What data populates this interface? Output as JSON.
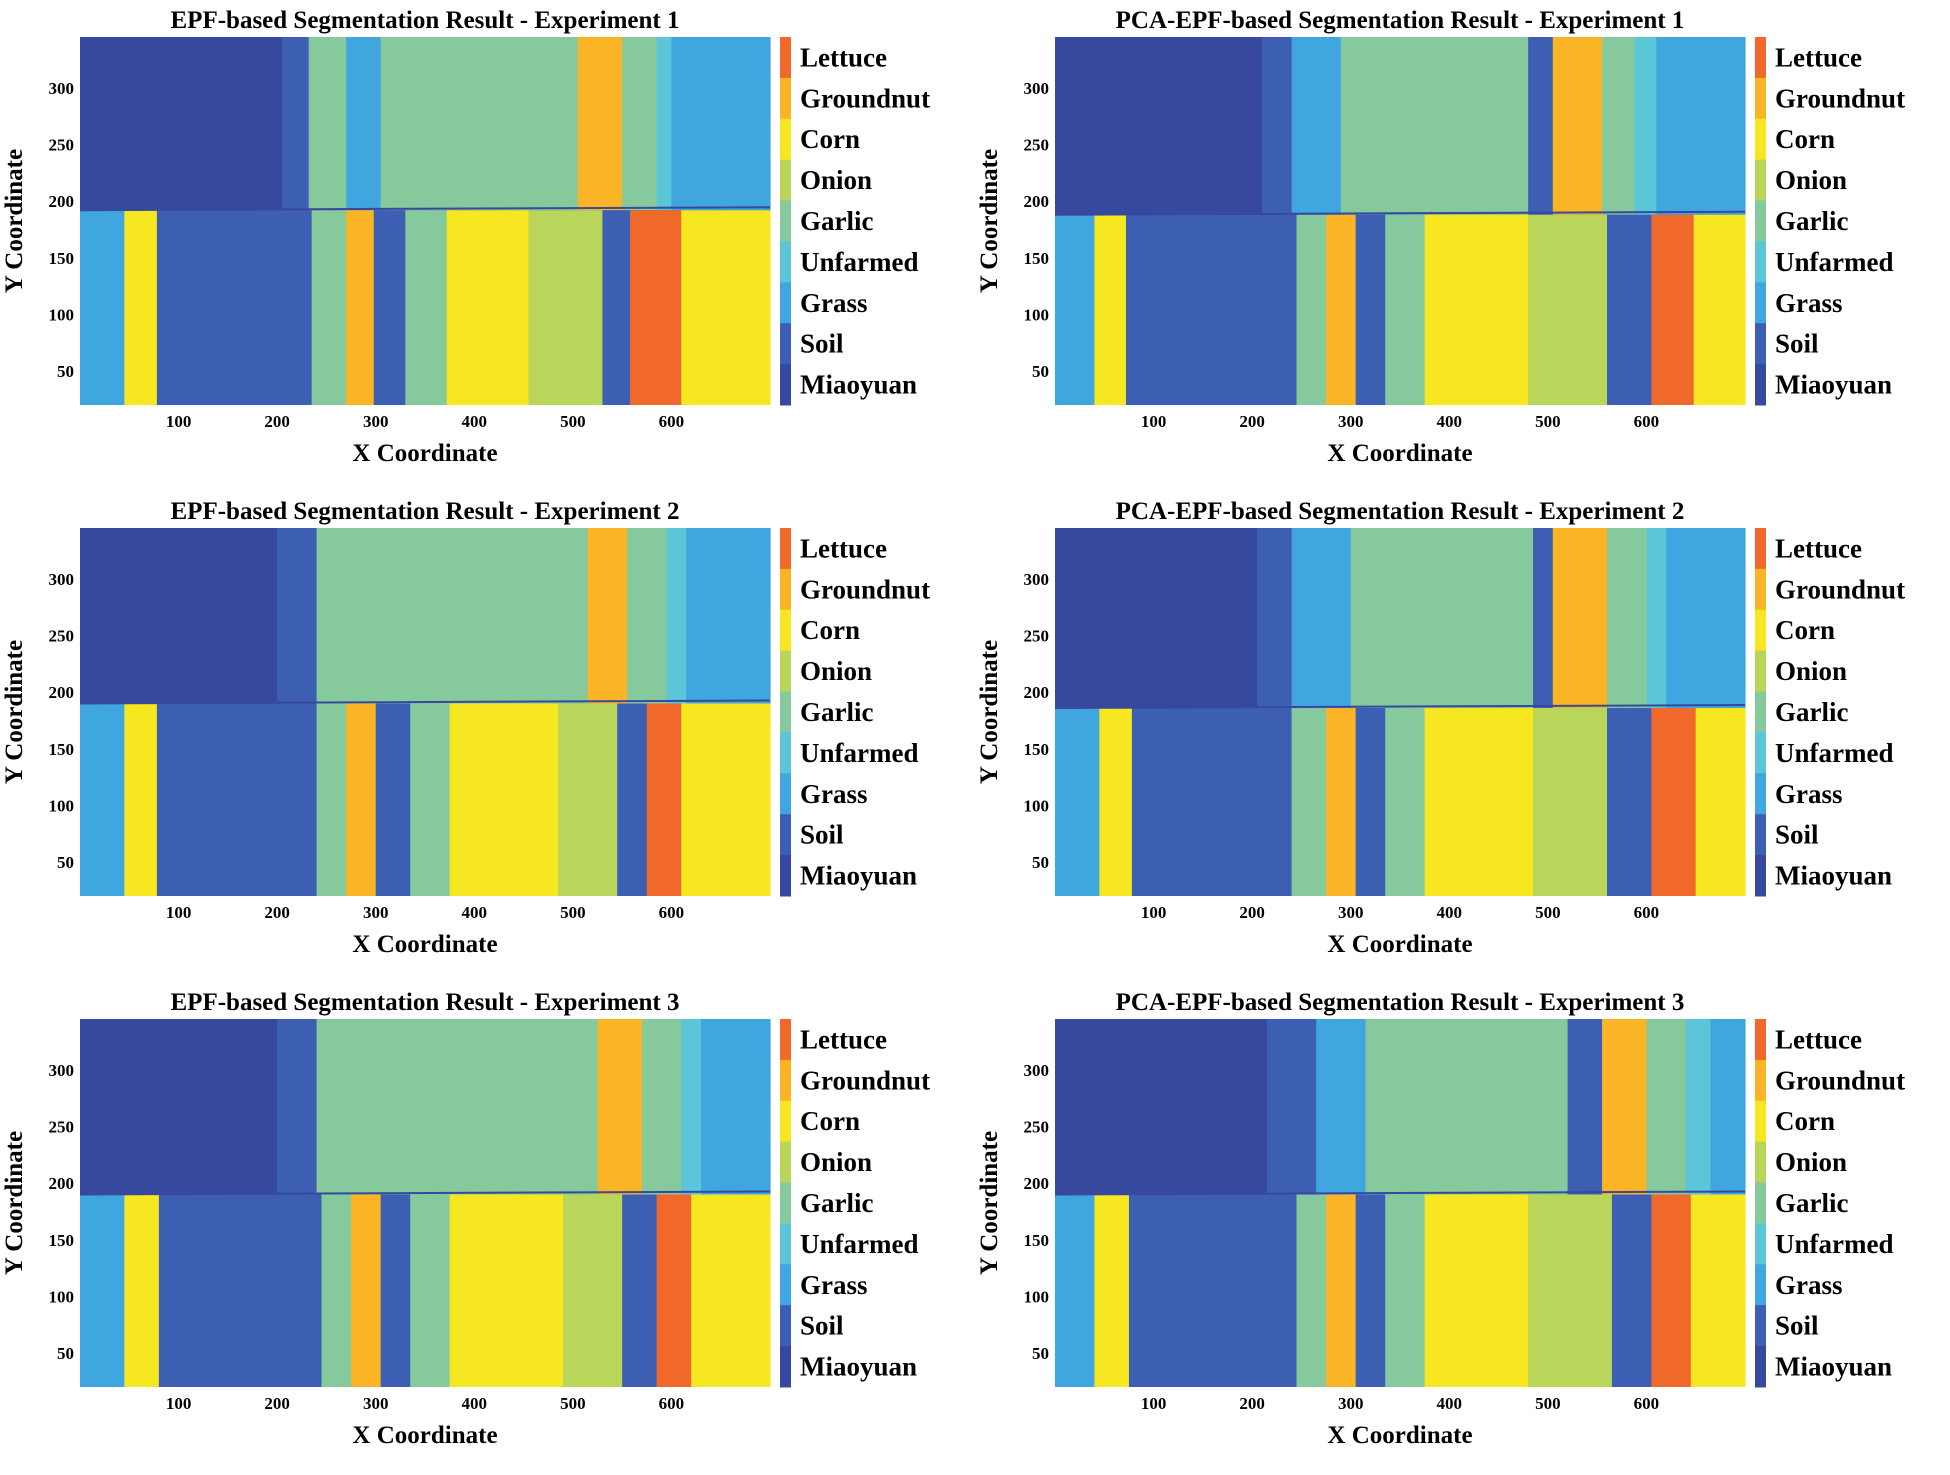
{
  "figure": {
    "panel_count": 6
  },
  "classes": [
    "Lettuce",
    "Groundnut",
    "Corn",
    "Onion",
    "Garlic",
    "Unfarmed",
    "Grass",
    "Soil",
    "Miaoyuan"
  ],
  "class_colors": {
    "Lettuce": "#f0692a",
    "Groundnut": "#fbb425",
    "Corn": "#f6e720",
    "Onion": "#b9d65a",
    "Garlic": "#85c99c",
    "Unfarmed": "#5cc6d9",
    "Grass": "#3fa6e0",
    "Soil": "#3d5fb3",
    "Miaoyuan": "#37489f"
  },
  "chart_data": [
    {
      "type": "heatmap",
      "title": "EPF-based Segmentation Result - Experiment 1",
      "xlabel": "X Coordinate",
      "ylabel": "Y Coordinate",
      "xlim": [
        0,
        700
      ],
      "ylim": [
        20,
        345
      ],
      "xticks": [
        100,
        200,
        300,
        400,
        500,
        600
      ],
      "yticks": [
        50,
        100,
        150,
        200,
        250,
        300
      ],
      "legend": [
        "Lettuce",
        "Groundnut",
        "Corn",
        "Onion",
        "Garlic",
        "Unfarmed",
        "Grass",
        "Soil",
        "Miaoyuan"
      ],
      "legend_position": "right",
      "boundary_y": 192,
      "top_regions": [
        {
          "x": [
            0,
            205
          ],
          "cls": "Miaoyuan"
        },
        {
          "x": [
            205,
            232
          ],
          "cls": "Soil"
        },
        {
          "x": [
            232,
            270
          ],
          "cls": "Garlic"
        },
        {
          "x": [
            270,
            305
          ],
          "cls": "Grass"
        },
        {
          "x": [
            305,
            375
          ],
          "cls": "Garlic"
        },
        {
          "x": [
            375,
            505
          ],
          "cls": "Garlic"
        },
        {
          "x": [
            505,
            550
          ],
          "cls": "Groundnut"
        },
        {
          "x": [
            550,
            585
          ],
          "cls": "Garlic"
        },
        {
          "x": [
            585,
            600
          ],
          "cls": "Unfarmed"
        },
        {
          "x": [
            600,
            700
          ],
          "cls": "Grass"
        }
      ],
      "bottom_regions": [
        {
          "x": [
            0,
            45
          ],
          "cls": "Grass"
        },
        {
          "x": [
            45,
            78
          ],
          "cls": "Corn"
        },
        {
          "x": [
            78,
            235
          ],
          "cls": "Soil"
        },
        {
          "x": [
            235,
            270
          ],
          "cls": "Garlic"
        },
        {
          "x": [
            270,
            298
          ],
          "cls": "Groundnut"
        },
        {
          "x": [
            298,
            330
          ],
          "cls": "Soil"
        },
        {
          "x": [
            330,
            372
          ],
          "cls": "Garlic"
        },
        {
          "x": [
            372,
            455
          ],
          "cls": "Corn"
        },
        {
          "x": [
            455,
            530
          ],
          "cls": "Onion"
        },
        {
          "x": [
            530,
            558
          ],
          "cls": "Soil"
        },
        {
          "x": [
            558,
            610
          ],
          "cls": "Lettuce"
        },
        {
          "x": [
            610,
            700
          ],
          "cls": "Corn"
        }
      ]
    },
    {
      "type": "heatmap",
      "title": "PCA-EPF-based Segmentation Result - Experiment 1",
      "xlabel": "X Coordinate",
      "ylabel": "Y Coordinate",
      "xlim": [
        0,
        700
      ],
      "ylim": [
        20,
        345
      ],
      "xticks": [
        100,
        200,
        300,
        400,
        500,
        600
      ],
      "yticks": [
        50,
        100,
        150,
        200,
        250,
        300
      ],
      "legend": [
        "Lettuce",
        "Groundnut",
        "Corn",
        "Onion",
        "Garlic",
        "Unfarmed",
        "Grass",
        "Soil",
        "Miaoyuan"
      ],
      "legend_position": "right",
      "boundary_y": 188,
      "top_regions": [
        {
          "x": [
            0,
            210
          ],
          "cls": "Miaoyuan"
        },
        {
          "x": [
            210,
            240
          ],
          "cls": "Soil"
        },
        {
          "x": [
            240,
            290
          ],
          "cls": "Grass"
        },
        {
          "x": [
            290,
            375
          ],
          "cls": "Garlic"
        },
        {
          "x": [
            375,
            480
          ],
          "cls": "Garlic"
        },
        {
          "x": [
            480,
            505
          ],
          "cls": "Soil"
        },
        {
          "x": [
            505,
            555
          ],
          "cls": "Groundnut"
        },
        {
          "x": [
            555,
            588
          ],
          "cls": "Garlic"
        },
        {
          "x": [
            588,
            610
          ],
          "cls": "Unfarmed"
        },
        {
          "x": [
            610,
            700
          ],
          "cls": "Grass"
        }
      ],
      "bottom_regions": [
        {
          "x": [
            0,
            40
          ],
          "cls": "Grass"
        },
        {
          "x": [
            40,
            72
          ],
          "cls": "Corn"
        },
        {
          "x": [
            72,
            245
          ],
          "cls": "Soil"
        },
        {
          "x": [
            245,
            275
          ],
          "cls": "Garlic"
        },
        {
          "x": [
            275,
            305
          ],
          "cls": "Groundnut"
        },
        {
          "x": [
            305,
            335
          ],
          "cls": "Soil"
        },
        {
          "x": [
            335,
            375
          ],
          "cls": "Garlic"
        },
        {
          "x": [
            375,
            480
          ],
          "cls": "Corn"
        },
        {
          "x": [
            480,
            560
          ],
          "cls": "Onion"
        },
        {
          "x": [
            560,
            605
          ],
          "cls": "Soil"
        },
        {
          "x": [
            605,
            648
          ],
          "cls": "Lettuce"
        },
        {
          "x": [
            648,
            700
          ],
          "cls": "Corn"
        }
      ]
    },
    {
      "type": "heatmap",
      "title": "EPF-based Segmentation Result - Experiment 2",
      "xlabel": "X Coordinate",
      "ylabel": "Y Coordinate",
      "xlim": [
        0,
        700
      ],
      "ylim": [
        20,
        345
      ],
      "xticks": [
        100,
        200,
        300,
        400,
        500,
        600
      ],
      "yticks": [
        50,
        100,
        150,
        200,
        250,
        300
      ],
      "legend": [
        "Lettuce",
        "Groundnut",
        "Corn",
        "Onion",
        "Garlic",
        "Unfarmed",
        "Grass",
        "Soil",
        "Miaoyuan"
      ],
      "legend_position": "right",
      "boundary_y": 190,
      "top_regions": [
        {
          "x": [
            0,
            200
          ],
          "cls": "Miaoyuan"
        },
        {
          "x": [
            200,
            240
          ],
          "cls": "Soil"
        },
        {
          "x": [
            240,
            300
          ],
          "cls": "Garlic"
        },
        {
          "x": [
            300,
            380
          ],
          "cls": "Garlic"
        },
        {
          "x": [
            380,
            515
          ],
          "cls": "Garlic"
        },
        {
          "x": [
            515,
            555
          ],
          "cls": "Groundnut"
        },
        {
          "x": [
            555,
            595
          ],
          "cls": "Garlic"
        },
        {
          "x": [
            595,
            615
          ],
          "cls": "Unfarmed"
        },
        {
          "x": [
            615,
            700
          ],
          "cls": "Grass"
        }
      ],
      "bottom_regions": [
        {
          "x": [
            0,
            45
          ],
          "cls": "Grass"
        },
        {
          "x": [
            45,
            78
          ],
          "cls": "Corn"
        },
        {
          "x": [
            78,
            240
          ],
          "cls": "Soil"
        },
        {
          "x": [
            240,
            270
          ],
          "cls": "Garlic"
        },
        {
          "x": [
            270,
            300
          ],
          "cls": "Groundnut"
        },
        {
          "x": [
            300,
            335
          ],
          "cls": "Soil"
        },
        {
          "x": [
            335,
            375
          ],
          "cls": "Garlic"
        },
        {
          "x": [
            375,
            485
          ],
          "cls": "Corn"
        },
        {
          "x": [
            485,
            545
          ],
          "cls": "Onion"
        },
        {
          "x": [
            545,
            575
          ],
          "cls": "Soil"
        },
        {
          "x": [
            575,
            610
          ],
          "cls": "Lettuce"
        },
        {
          "x": [
            610,
            700
          ],
          "cls": "Corn"
        }
      ]
    },
    {
      "type": "heatmap",
      "title": "PCA-EPF-based Segmentation Result - Experiment 2",
      "xlabel": "X Coordinate",
      "ylabel": "Y Coordinate",
      "xlim": [
        0,
        700
      ],
      "ylim": [
        20,
        345
      ],
      "xticks": [
        100,
        200,
        300,
        400,
        500,
        600
      ],
      "yticks": [
        50,
        100,
        150,
        200,
        250,
        300
      ],
      "legend": [
        "Lettuce",
        "Groundnut",
        "Corn",
        "Onion",
        "Garlic",
        "Unfarmed",
        "Grass",
        "Soil",
        "Miaoyuan"
      ],
      "legend_position": "right",
      "boundary_y": 186,
      "top_regions": [
        {
          "x": [
            0,
            205
          ],
          "cls": "Miaoyuan"
        },
        {
          "x": [
            205,
            240
          ],
          "cls": "Soil"
        },
        {
          "x": [
            240,
            300
          ],
          "cls": "Grass"
        },
        {
          "x": [
            300,
            380
          ],
          "cls": "Garlic"
        },
        {
          "x": [
            380,
            485
          ],
          "cls": "Garlic"
        },
        {
          "x": [
            485,
            505
          ],
          "cls": "Soil"
        },
        {
          "x": [
            505,
            560
          ],
          "cls": "Groundnut"
        },
        {
          "x": [
            560,
            600
          ],
          "cls": "Garlic"
        },
        {
          "x": [
            600,
            620
          ],
          "cls": "Unfarmed"
        },
        {
          "x": [
            620,
            700
          ],
          "cls": "Grass"
        }
      ],
      "bottom_regions": [
        {
          "x": [
            0,
            45
          ],
          "cls": "Grass"
        },
        {
          "x": [
            45,
            78
          ],
          "cls": "Corn"
        },
        {
          "x": [
            78,
            240
          ],
          "cls": "Soil"
        },
        {
          "x": [
            240,
            275
          ],
          "cls": "Garlic"
        },
        {
          "x": [
            275,
            305
          ],
          "cls": "Groundnut"
        },
        {
          "x": [
            305,
            335
          ],
          "cls": "Soil"
        },
        {
          "x": [
            335,
            375
          ],
          "cls": "Garlic"
        },
        {
          "x": [
            375,
            485
          ],
          "cls": "Corn"
        },
        {
          "x": [
            485,
            560
          ],
          "cls": "Onion"
        },
        {
          "x": [
            560,
            605
          ],
          "cls": "Soil"
        },
        {
          "x": [
            605,
            650
          ],
          "cls": "Lettuce"
        },
        {
          "x": [
            650,
            700
          ],
          "cls": "Corn"
        }
      ]
    },
    {
      "type": "heatmap",
      "title": "EPF-based Segmentation Result - Experiment 3",
      "xlabel": "X Coordinate",
      "ylabel": "Y Coordinate",
      "xlim": [
        0,
        700
      ],
      "ylim": [
        20,
        345
      ],
      "xticks": [
        100,
        200,
        300,
        400,
        500,
        600
      ],
      "yticks": [
        50,
        100,
        150,
        200,
        250,
        300
      ],
      "legend": [
        "Lettuce",
        "Groundnut",
        "Corn",
        "Onion",
        "Garlic",
        "Unfarmed",
        "Grass",
        "Soil",
        "Miaoyuan"
      ],
      "legend_position": "right",
      "boundary_y": 190,
      "top_regions": [
        {
          "x": [
            0,
            200
          ],
          "cls": "Miaoyuan"
        },
        {
          "x": [
            200,
            240
          ],
          "cls": "Soil"
        },
        {
          "x": [
            240,
            300
          ],
          "cls": "Garlic"
        },
        {
          "x": [
            300,
            375
          ],
          "cls": "Garlic"
        },
        {
          "x": [
            375,
            525
          ],
          "cls": "Garlic"
        },
        {
          "x": [
            525,
            570
          ],
          "cls": "Groundnut"
        },
        {
          "x": [
            570,
            610
          ],
          "cls": "Garlic"
        },
        {
          "x": [
            610,
            630
          ],
          "cls": "Unfarmed"
        },
        {
          "x": [
            630,
            700
          ],
          "cls": "Grass"
        }
      ],
      "bottom_regions": [
        {
          "x": [
            0,
            45
          ],
          "cls": "Grass"
        },
        {
          "x": [
            45,
            80
          ],
          "cls": "Corn"
        },
        {
          "x": [
            80,
            245
          ],
          "cls": "Soil"
        },
        {
          "x": [
            245,
            275
          ],
          "cls": "Garlic"
        },
        {
          "x": [
            275,
            305
          ],
          "cls": "Groundnut"
        },
        {
          "x": [
            305,
            335
          ],
          "cls": "Soil"
        },
        {
          "x": [
            335,
            375
          ],
          "cls": "Garlic"
        },
        {
          "x": [
            375,
            490
          ],
          "cls": "Corn"
        },
        {
          "x": [
            490,
            550
          ],
          "cls": "Onion"
        },
        {
          "x": [
            550,
            585
          ],
          "cls": "Soil"
        },
        {
          "x": [
            585,
            620
          ],
          "cls": "Lettuce"
        },
        {
          "x": [
            620,
            700
          ],
          "cls": "Corn"
        }
      ]
    },
    {
      "type": "heatmap",
      "title": "PCA-EPF-based Segmentation Result - Experiment 3",
      "xlabel": "X Coordinate",
      "ylabel": "Y Coordinate",
      "xlim": [
        0,
        700
      ],
      "ylim": [
        20,
        345
      ],
      "xticks": [
        100,
        200,
        300,
        400,
        500,
        600
      ],
      "yticks": [
        50,
        100,
        150,
        200,
        250,
        300
      ],
      "legend": [
        "Lettuce",
        "Groundnut",
        "Corn",
        "Onion",
        "Garlic",
        "Unfarmed",
        "Grass",
        "Soil",
        "Miaoyuan"
      ],
      "legend_position": "right",
      "boundary_y": 190,
      "top_regions": [
        {
          "x": [
            0,
            215
          ],
          "cls": "Miaoyuan"
        },
        {
          "x": [
            215,
            265
          ],
          "cls": "Soil"
        },
        {
          "x": [
            265,
            315
          ],
          "cls": "Grass"
        },
        {
          "x": [
            315,
            395
          ],
          "cls": "Garlic"
        },
        {
          "x": [
            395,
            520
          ],
          "cls": "Garlic"
        },
        {
          "x": [
            520,
            555
          ],
          "cls": "Soil"
        },
        {
          "x": [
            555,
            600
          ],
          "cls": "Groundnut"
        },
        {
          "x": [
            600,
            640
          ],
          "cls": "Garlic"
        },
        {
          "x": [
            640,
            665
          ],
          "cls": "Unfarmed"
        },
        {
          "x": [
            665,
            700
          ],
          "cls": "Grass"
        }
      ],
      "bottom_regions": [
        {
          "x": [
            0,
            40
          ],
          "cls": "Grass"
        },
        {
          "x": [
            40,
            75
          ],
          "cls": "Corn"
        },
        {
          "x": [
            75,
            245
          ],
          "cls": "Soil"
        },
        {
          "x": [
            245,
            275
          ],
          "cls": "Garlic"
        },
        {
          "x": [
            275,
            305
          ],
          "cls": "Groundnut"
        },
        {
          "x": [
            305,
            335
          ],
          "cls": "Soil"
        },
        {
          "x": [
            335,
            375
          ],
          "cls": "Garlic"
        },
        {
          "x": [
            375,
            480
          ],
          "cls": "Corn"
        },
        {
          "x": [
            480,
            565
          ],
          "cls": "Onion"
        },
        {
          "x": [
            565,
            605
          ],
          "cls": "Soil"
        },
        {
          "x": [
            605,
            645
          ],
          "cls": "Lettuce"
        },
        {
          "x": [
            645,
            700
          ],
          "cls": "Corn"
        }
      ]
    }
  ]
}
